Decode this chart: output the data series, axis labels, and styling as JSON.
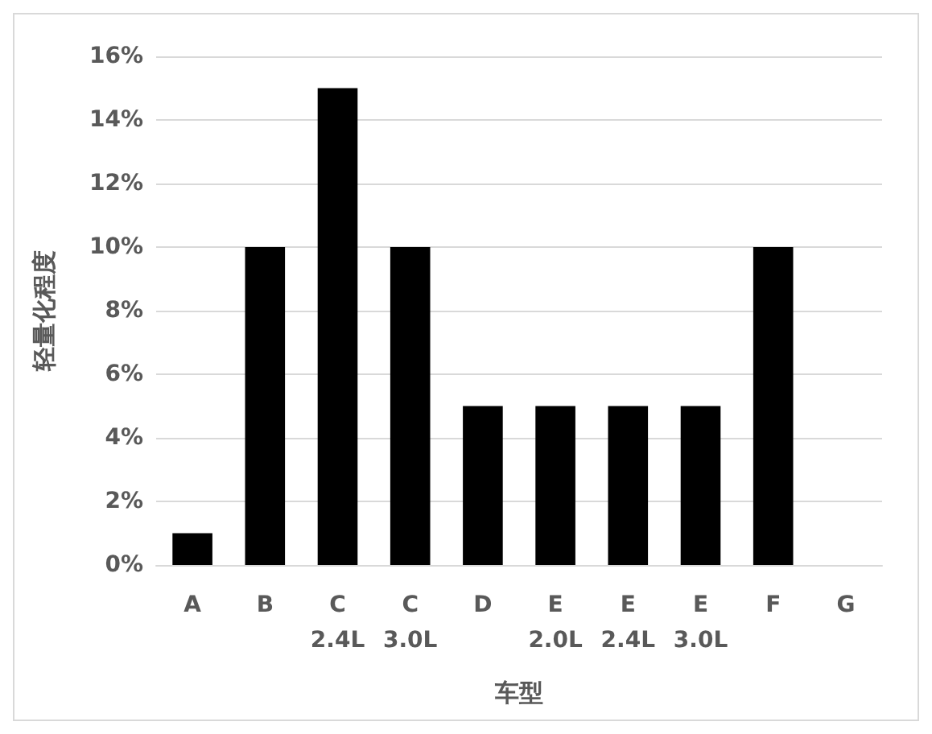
{
  "chart_data": {
    "type": "bar",
    "xlabel": "车型",
    "ylabel": "轻量化程度",
    "categories": [
      "A",
      "B",
      "C\n2.4L",
      "C\n3.0L",
      "D",
      "E\n2.0L",
      "E\n2.4L",
      "E\n3.0L",
      "F",
      "G"
    ],
    "values": [
      1,
      10,
      15,
      10,
      5,
      5,
      5,
      5,
      10,
      0
    ],
    "color": "#000000",
    "ylim": [
      0,
      16
    ],
    "yticks": [
      {
        "value": 0,
        "label": "0%"
      },
      {
        "value": 2,
        "label": "2%"
      },
      {
        "value": 4,
        "label": "4%"
      },
      {
        "value": 6,
        "label": "6%"
      },
      {
        "value": 8,
        "label": "8%"
      },
      {
        "value": 10,
        "label": "10%"
      },
      {
        "value": 12,
        "label": "12%"
      },
      {
        "value": 14,
        "label": "14%"
      },
      {
        "value": 16,
        "label": "16%"
      }
    ],
    "grid": "y"
  }
}
